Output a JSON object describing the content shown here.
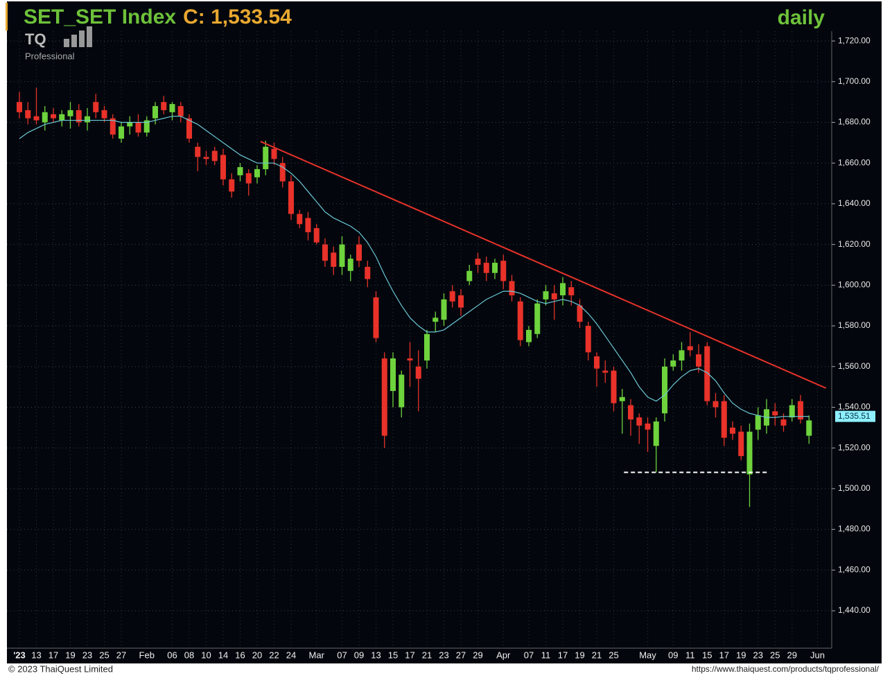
{
  "chart_data": {
    "type": "candlestick",
    "title": {
      "symbol": "SET_SET Index",
      "close_label": "C: 1,533.54",
      "symbol_color": "#6ec23a",
      "close_color": "#e8a830"
    },
    "period": "daily",
    "logo": {
      "mark": "TQ",
      "sub": "Professional"
    },
    "footer": {
      "copyright": "© 2023 ThaiQuest Limited",
      "url": "https://www.thaiquest.com/products/tqprofessional/"
    },
    "categories": [
      "'23",
      null,
      "13",
      null,
      "17",
      null,
      "19",
      null,
      "23",
      null,
      "25",
      null,
      "27",
      null,
      null,
      "Feb",
      null,
      null,
      "06",
      null,
      "08",
      null,
      "10",
      null,
      "14",
      null,
      "16",
      null,
      "20",
      null,
      "22",
      null,
      "24",
      null,
      null,
      "Mar",
      null,
      null,
      "07",
      null,
      "09",
      null,
      "13",
      null,
      "15",
      null,
      "17",
      null,
      "21",
      null,
      "23",
      null,
      "27",
      null,
      "29",
      null,
      null,
      "Apr",
      null,
      null,
      "07",
      null,
      "11",
      null,
      "17",
      null,
      "19",
      null,
      "21",
      null,
      "25",
      null,
      null,
      null,
      "May",
      null,
      null,
      "09",
      null,
      "11",
      null,
      "15",
      null,
      "17",
      null,
      "19",
      null,
      "23",
      null,
      "25",
      null,
      "29",
      null,
      null,
      "Jun"
    ],
    "open": [
      1690,
      1686,
      1683,
      1680,
      1684,
      1681,
      1683,
      1686,
      1680,
      1690,
      1686,
      1682,
      1672,
      1678,
      1680,
      1675,
      1682,
      1690,
      1685,
      1688,
      1682,
      1668,
      1663,
      1666,
      1664,
      1652,
      1654,
      1655,
      1653,
      1657,
      1667,
      1660,
      1651,
      1635,
      1633,
      1628,
      1620,
      1616,
      1609,
      1607,
      1620,
      1609,
      1594,
      1564,
      1548,
      1540,
      1564,
      1560,
      1563,
      1582,
      1583,
      1597,
      1595,
      1602,
      1613,
      1611,
      1606,
      1612,
      1602,
      1592,
      1572,
      1576,
      1593,
      1596,
      1595,
      1599,
      1590,
      1580,
      1565,
      1558,
      1558,
      1543,
      1541,
      1535,
      1532,
      1521,
      1537,
      1560,
      1563,
      1570,
      1566,
      1570,
      1543,
      1543,
      1530,
      1528,
      1507,
      1529,
      1531,
      1538,
      1534,
      1535,
      1543,
      1526,
      null
    ],
    "high": [
      1695,
      1690,
      1697,
      1688,
      1687,
      1686,
      1690,
      1689,
      1687,
      1694,
      1688,
      1684,
      1680,
      1683,
      1684,
      1683,
      1690,
      1693,
      1690,
      1690,
      1684,
      1670,
      1666,
      1668,
      1667,
      1655,
      1660,
      1657,
      1659,
      1671,
      1670,
      1663,
      1654,
      1637,
      1636,
      1630,
      1623,
      1619,
      1624,
      1615,
      1624,
      1612,
      1597,
      1567,
      1567,
      1558,
      1572,
      1568,
      1578,
      1587,
      1596,
      1600,
      1598,
      1610,
      1616,
      1614,
      1613,
      1615,
      1605,
      1594,
      1580,
      1593,
      1600,
      1600,
      1604,
      1602,
      1593,
      1582,
      1567,
      1563,
      1560,
      1549,
      1544,
      1537,
      1535,
      1535,
      1564,
      1566,
      1572,
      1577,
      1571,
      1572,
      1547,
      1546,
      1533,
      1531,
      1532,
      1540,
      1544,
      1542,
      1537,
      1544,
      1546,
      1536,
      null
    ],
    "low": [
      1682,
      1679,
      1679,
      1676,
      1680,
      1678,
      1677,
      1678,
      1676,
      1682,
      1680,
      1672,
      1670,
      1674,
      1673,
      1673,
      1679,
      1684,
      1681,
      1680,
      1670,
      1656,
      1659,
      1659,
      1649,
      1643,
      1651,
      1644,
      1650,
      1654,
      1659,
      1648,
      1632,
      1628,
      1622,
      1620,
      1609,
      1605,
      1605,
      1602,
      1609,
      1599,
      1572,
      1520,
      1540,
      1535,
      1550,
      1538,
      1559,
      1577,
      1580,
      1589,
      1585,
      1600,
      1606,
      1602,
      1603,
      1598,
      1592,
      1570,
      1570,
      1574,
      1590,
      1583,
      1590,
      1590,
      1579,
      1563,
      1550,
      1552,
      1538,
      1527,
      1526,
      1522,
      1518,
      1508,
      1533,
      1558,
      1558,
      1565,
      1557,
      1541,
      1535,
      1521,
      1524,
      1514,
      1491,
      1524,
      1527,
      1531,
      1528,
      1533,
      1532,
      1522,
      null
    ],
    "close": [
      1685,
      1682,
      1681,
      1685,
      1682,
      1684,
      1686,
      1680,
      1683,
      1685,
      1682,
      1674,
      1678,
      1680,
      1675,
      1681,
      1688,
      1686,
      1689,
      1683,
      1672,
      1663,
      1662,
      1661,
      1652,
      1646,
      1658,
      1650,
      1657,
      1668,
      1662,
      1651,
      1635,
      1630,
      1626,
      1621,
      1612,
      1609,
      1620,
      1613,
      1612,
      1603,
      1574,
      1526,
      1564,
      1556,
      1563,
      1554,
      1576,
      1584,
      1593,
      1592,
      1589,
      1607,
      1610,
      1606,
      1611,
      1602,
      1595,
      1573,
      1578,
      1591,
      1597,
      1593,
      1601,
      1595,
      1582,
      1567,
      1559,
      1557,
      1542,
      1545,
      1534,
      1531,
      1529,
      1533,
      1560,
      1563,
      1568,
      1568,
      1560,
      1543,
      1540,
      1525,
      1527,
      1516,
      1528,
      1536,
      1539,
      1536,
      1531,
      1541,
      1534,
      1533.54,
      null
    ],
    "up_color": "#6ed33c",
    "down_color": "#e8322a",
    "ma": {
      "color": "#6cc8d8",
      "values": [
        1672,
        1675,
        1677,
        1679,
        1680,
        1681,
        1681,
        1681,
        1681,
        1681,
        1681,
        1681,
        1680,
        1680,
        1680,
        1680,
        1681,
        1682,
        1683,
        1683,
        1681,
        1679,
        1676,
        1673,
        1670,
        1667,
        1664,
        1662,
        1660,
        1660,
        1660,
        1658,
        1655,
        1651,
        1646,
        1641,
        1636,
        1633,
        1631,
        1629,
        1626,
        1621,
        1614,
        1605,
        1597,
        1590,
        1584,
        1580,
        1577,
        1577,
        1578,
        1581,
        1584,
        1587,
        1590,
        1593,
        1595,
        1597,
        1597,
        1596,
        1594,
        1592,
        1591,
        1592,
        1593,
        1592,
        1590,
        1586,
        1581,
        1575,
        1569,
        1563,
        1557,
        1550,
        1545,
        1543,
        1546,
        1551,
        1555,
        1558,
        1559,
        1557,
        1553,
        1547,
        1542,
        1539,
        1537,
        1536,
        1535,
        1535,
        1535.5,
        1535.5,
        1535.5,
        1535.51,
        null
      ],
      "last_label": {
        "value": 1535.51,
        "label": "1,535.51"
      },
      "label_color": "#8ff0ff"
    },
    "trendline": {
      "color": "#e8322a",
      "start": [
        28.4,
        1670.6
      ],
      "end": [
        95,
        1549.4
      ]
    },
    "support": {
      "color": "#ffffff",
      "value": 1508,
      "start": 71.2,
      "end": 88.2
    },
    "ylim": [
      1421.6,
      1724.8
    ],
    "yticks": [
      {
        "value": 1440,
        "label": "1,440.00"
      },
      {
        "value": 1460,
        "label": "1,460.00"
      },
      {
        "value": 1480,
        "label": "1,480.00"
      },
      {
        "value": 1500,
        "label": "1,500.00"
      },
      {
        "value": 1520,
        "label": "1,520.00"
      },
      {
        "value": 1540,
        "label": "1,540.00"
      },
      {
        "value": 1560,
        "label": "1,560.00"
      },
      {
        "value": 1580,
        "label": "1,580.00"
      },
      {
        "value": 1600,
        "label": "1,600.00"
      },
      {
        "value": 1620,
        "label": "1,620.00"
      },
      {
        "value": 1640,
        "label": "1,640.00"
      },
      {
        "value": 1660,
        "label": "1,660.00"
      },
      {
        "value": 1680,
        "label": "1,680.00"
      },
      {
        "value": 1700,
        "label": "1,700.00"
      },
      {
        "value": 1720,
        "label": "1,720.00"
      }
    ],
    "grid": true
  }
}
